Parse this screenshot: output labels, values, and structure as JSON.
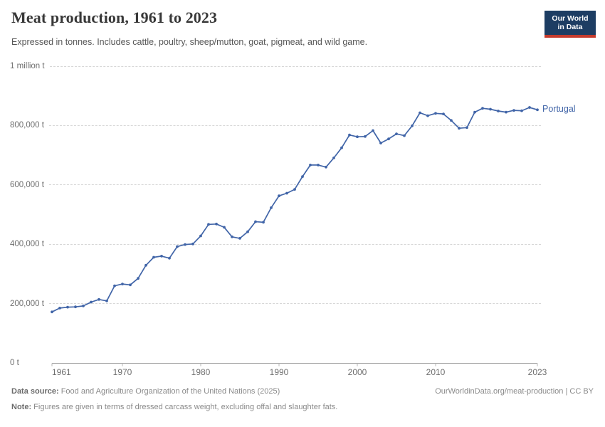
{
  "header": {
    "title": "Meat production, 1961 to 2023",
    "subtitle": "Expressed in tonnes. Includes cattle, poultry, sheep/mutton, goat, pigmeat, and wild game.",
    "logo_line1": "Our World",
    "logo_line2": "in Data"
  },
  "colors": {
    "line": "#4165a8",
    "axis": "#a3a3a3",
    "tick": "#b5b5b5",
    "logo_bg": "#1d3d63",
    "logo_red": "#c53b2d"
  },
  "chart_data": {
    "type": "line",
    "title": "Meat production, 1961 to 2023",
    "xlabel": "",
    "ylabel": "tonnes",
    "grid": "horizontal-dashed",
    "legend_position": "end-of-line-label",
    "xlim": [
      1961,
      2023
    ],
    "ylim": [
      0,
      1000000
    ],
    "x_ticks": [
      1961,
      1970,
      1980,
      1990,
      2000,
      2010,
      2023
    ],
    "y_ticks": [
      {
        "label": "1 million t",
        "value": 1000000
      },
      {
        "label": "800,000 t",
        "value": 800000
      },
      {
        "label": "600,000 t",
        "value": 600000
      },
      {
        "label": "400,000 t",
        "value": 400000
      },
      {
        "label": "200,000 t",
        "value": 200000
      },
      {
        "label": "0 t",
        "value": 0
      }
    ],
    "series": [
      {
        "name": "Portugal",
        "color": "#4165a8",
        "x": [
          1961,
          1962,
          1963,
          1964,
          1965,
          1966,
          1967,
          1968,
          1969,
          1970,
          1971,
          1972,
          1973,
          1974,
          1975,
          1976,
          1977,
          1978,
          1979,
          1980,
          1981,
          1982,
          1983,
          1984,
          1985,
          1986,
          1987,
          1988,
          1989,
          1990,
          1991,
          1992,
          1993,
          1994,
          1995,
          1996,
          1997,
          1998,
          1999,
          2000,
          2001,
          2002,
          2003,
          2004,
          2005,
          2006,
          2007,
          2008,
          2009,
          2010,
          2011,
          2012,
          2013,
          2014,
          2015,
          2016,
          2017,
          2018,
          2019,
          2020,
          2021,
          2022,
          2023
        ],
        "values": [
          172000,
          185000,
          188000,
          189000,
          192000,
          205000,
          214000,
          209000,
          260000,
          266000,
          263000,
          285000,
          329000,
          356000,
          360000,
          353000,
          392000,
          399000,
          401000,
          428000,
          467000,
          468000,
          457000,
          425000,
          420000,
          442000,
          476000,
          474000,
          523000,
          563000,
          572000,
          585000,
          628000,
          667000,
          667000,
          660000,
          691000,
          725000,
          768000,
          762000,
          763000,
          783000,
          741000,
          755000,
          772000,
          766000,
          799000,
          843000,
          833000,
          841000,
          839000,
          817000,
          791000,
          793000,
          845000,
          858000,
          855000,
          849000,
          845000,
          851000,
          850000,
          861000,
          853000
        ]
      }
    ]
  },
  "footer": {
    "datasource_label": "Data source:",
    "datasource_text": " Food and Agriculture Organization of the United Nations (2025)",
    "link_text": "OurWorldinData.org/meat-production | CC BY",
    "note_label": "Note:",
    "note_text": " Figures are given in terms of dressed carcass weight, excluding offal and slaughter fats."
  }
}
